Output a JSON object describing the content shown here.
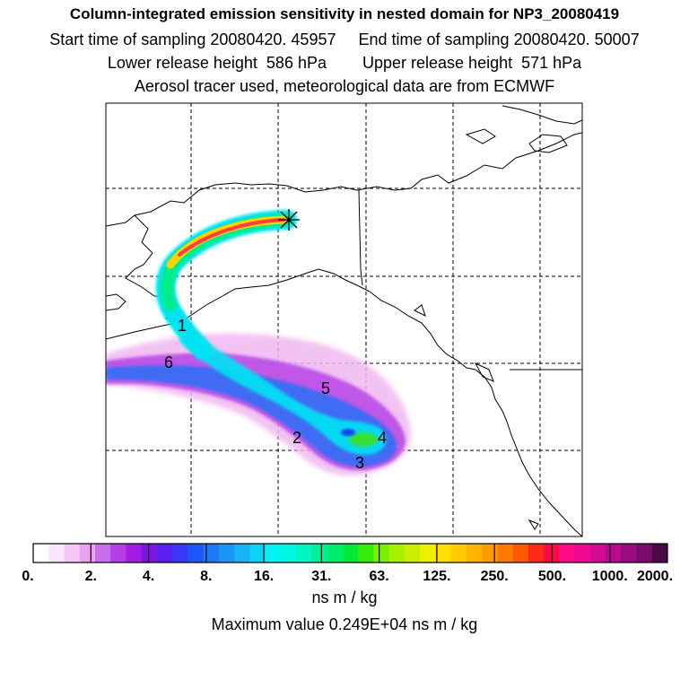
{
  "titles": {
    "line1": "Column-integrated emission sensitivity in nested domain for NP3_20080419",
    "line2": "Start time of sampling 20080420. 45957     End time of sampling 20080420. 50007",
    "line3": "Lower release height  586 hPa        Upper release height  571 hPa",
    "line4": "Aerosol tracer used, meteorological data are from ECMWF"
  },
  "markers": {
    "release_symbol": "asterisk-icon",
    "day_labels": [
      "1",
      "2",
      "3",
      "4",
      "5",
      "6"
    ]
  },
  "colorbar": {
    "tick_labels": [
      "0.",
      "2.",
      "4.",
      "8.",
      "16.",
      "31.",
      "63.",
      "125.",
      "250.",
      "500.",
      "1000.",
      "2000."
    ],
    "colors": [
      "#ffffff",
      "#fbe6fb",
      "#f3c6f6",
      "#eba3f0",
      "#c86ee8",
      "#b43ee6",
      "#a11de4",
      "#7a16e0",
      "#5a1ef0",
      "#3a36f5",
      "#1e55f7",
      "#1d78f5",
      "#1b96f5",
      "#15b4f7",
      "#0bd2f6",
      "#00f2f2",
      "#00f7df",
      "#00f5c0",
      "#00f09a",
      "#00ec6e",
      "#00e838",
      "#34ec0c",
      "#78f000",
      "#a6f000",
      "#c8f000",
      "#eef000",
      "#ffe000",
      "#ffcb00",
      "#ffb400",
      "#ff9a00",
      "#ff7a00",
      "#ff5a00",
      "#ff2a1a",
      "#ff0a44",
      "#ff0a88",
      "#f00a90",
      "#d40a92",
      "#b80a8e",
      "#9a0a80",
      "#7a0a6c",
      "#4a0a48"
    ],
    "unit": "ns m / kg",
    "max_label": "Maximum value  0.249E+04 ns m / kg"
  }
}
